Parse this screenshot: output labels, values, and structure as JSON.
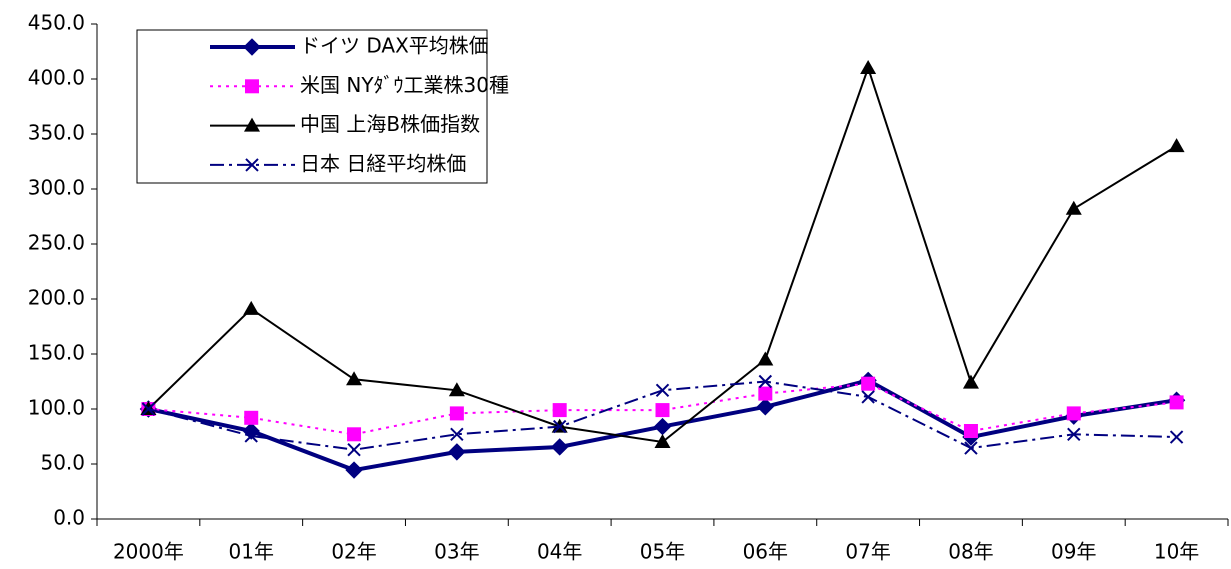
{
  "chart_data": {
    "type": "line",
    "categories": [
      "2000年",
      "01年",
      "02年",
      "03年",
      "04年",
      "05年",
      "06年",
      "07年",
      "08年",
      "09年",
      "10年"
    ],
    "ylim": [
      0,
      450
    ],
    "yticks": [
      {
        "value": 0,
        "label": "0.0"
      },
      {
        "value": 50,
        "label": "50.0"
      },
      {
        "value": 100,
        "label": "100.0"
      },
      {
        "value": 150,
        "label": "150.0"
      },
      {
        "value": 200,
        "label": "200.0"
      },
      {
        "value": 250,
        "label": "250.0"
      },
      {
        "value": 300,
        "label": "300.0"
      },
      {
        "value": 350,
        "label": "350.0"
      },
      {
        "value": 400,
        "label": "400.0"
      },
      {
        "value": 450,
        "label": "450.0"
      }
    ],
    "grid": false,
    "legend": "top-left",
    "series": [
      {
        "name": "ドイツ DAX平均株価",
        "color": "#000080",
        "marker": "diamond",
        "line_style": "solid",
        "line_width": 4,
        "values": [
          100,
          80,
          44.5,
          61,
          65.5,
          84,
          102,
          126,
          74.5,
          93.5,
          108
        ]
      },
      {
        "name": "米国 NYﾀﾞｳ工業株30種",
        "color": "#ff00ff",
        "marker": "square",
        "line_style": "dotted",
        "line_width": 2,
        "values": [
          100,
          92,
          77,
          96,
          99,
          99,
          114,
          123,
          80,
          96,
          106
        ]
      },
      {
        "name": "中国 上海B株価指数",
        "color": "#000000",
        "marker": "triangle",
        "line_style": "solid",
        "line_width": 2,
        "values": [
          100,
          191,
          127,
          117,
          84,
          70,
          145,
          410,
          124,
          282,
          339
        ]
      },
      {
        "name": "日本 日経平均株価",
        "color": "#000080",
        "marker": "x",
        "line_style": "dashdot",
        "line_width": 2,
        "values": [
          100,
          75.5,
          63,
          77,
          84,
          117,
          125,
          111,
          64.5,
          77,
          74.5
        ]
      }
    ]
  }
}
